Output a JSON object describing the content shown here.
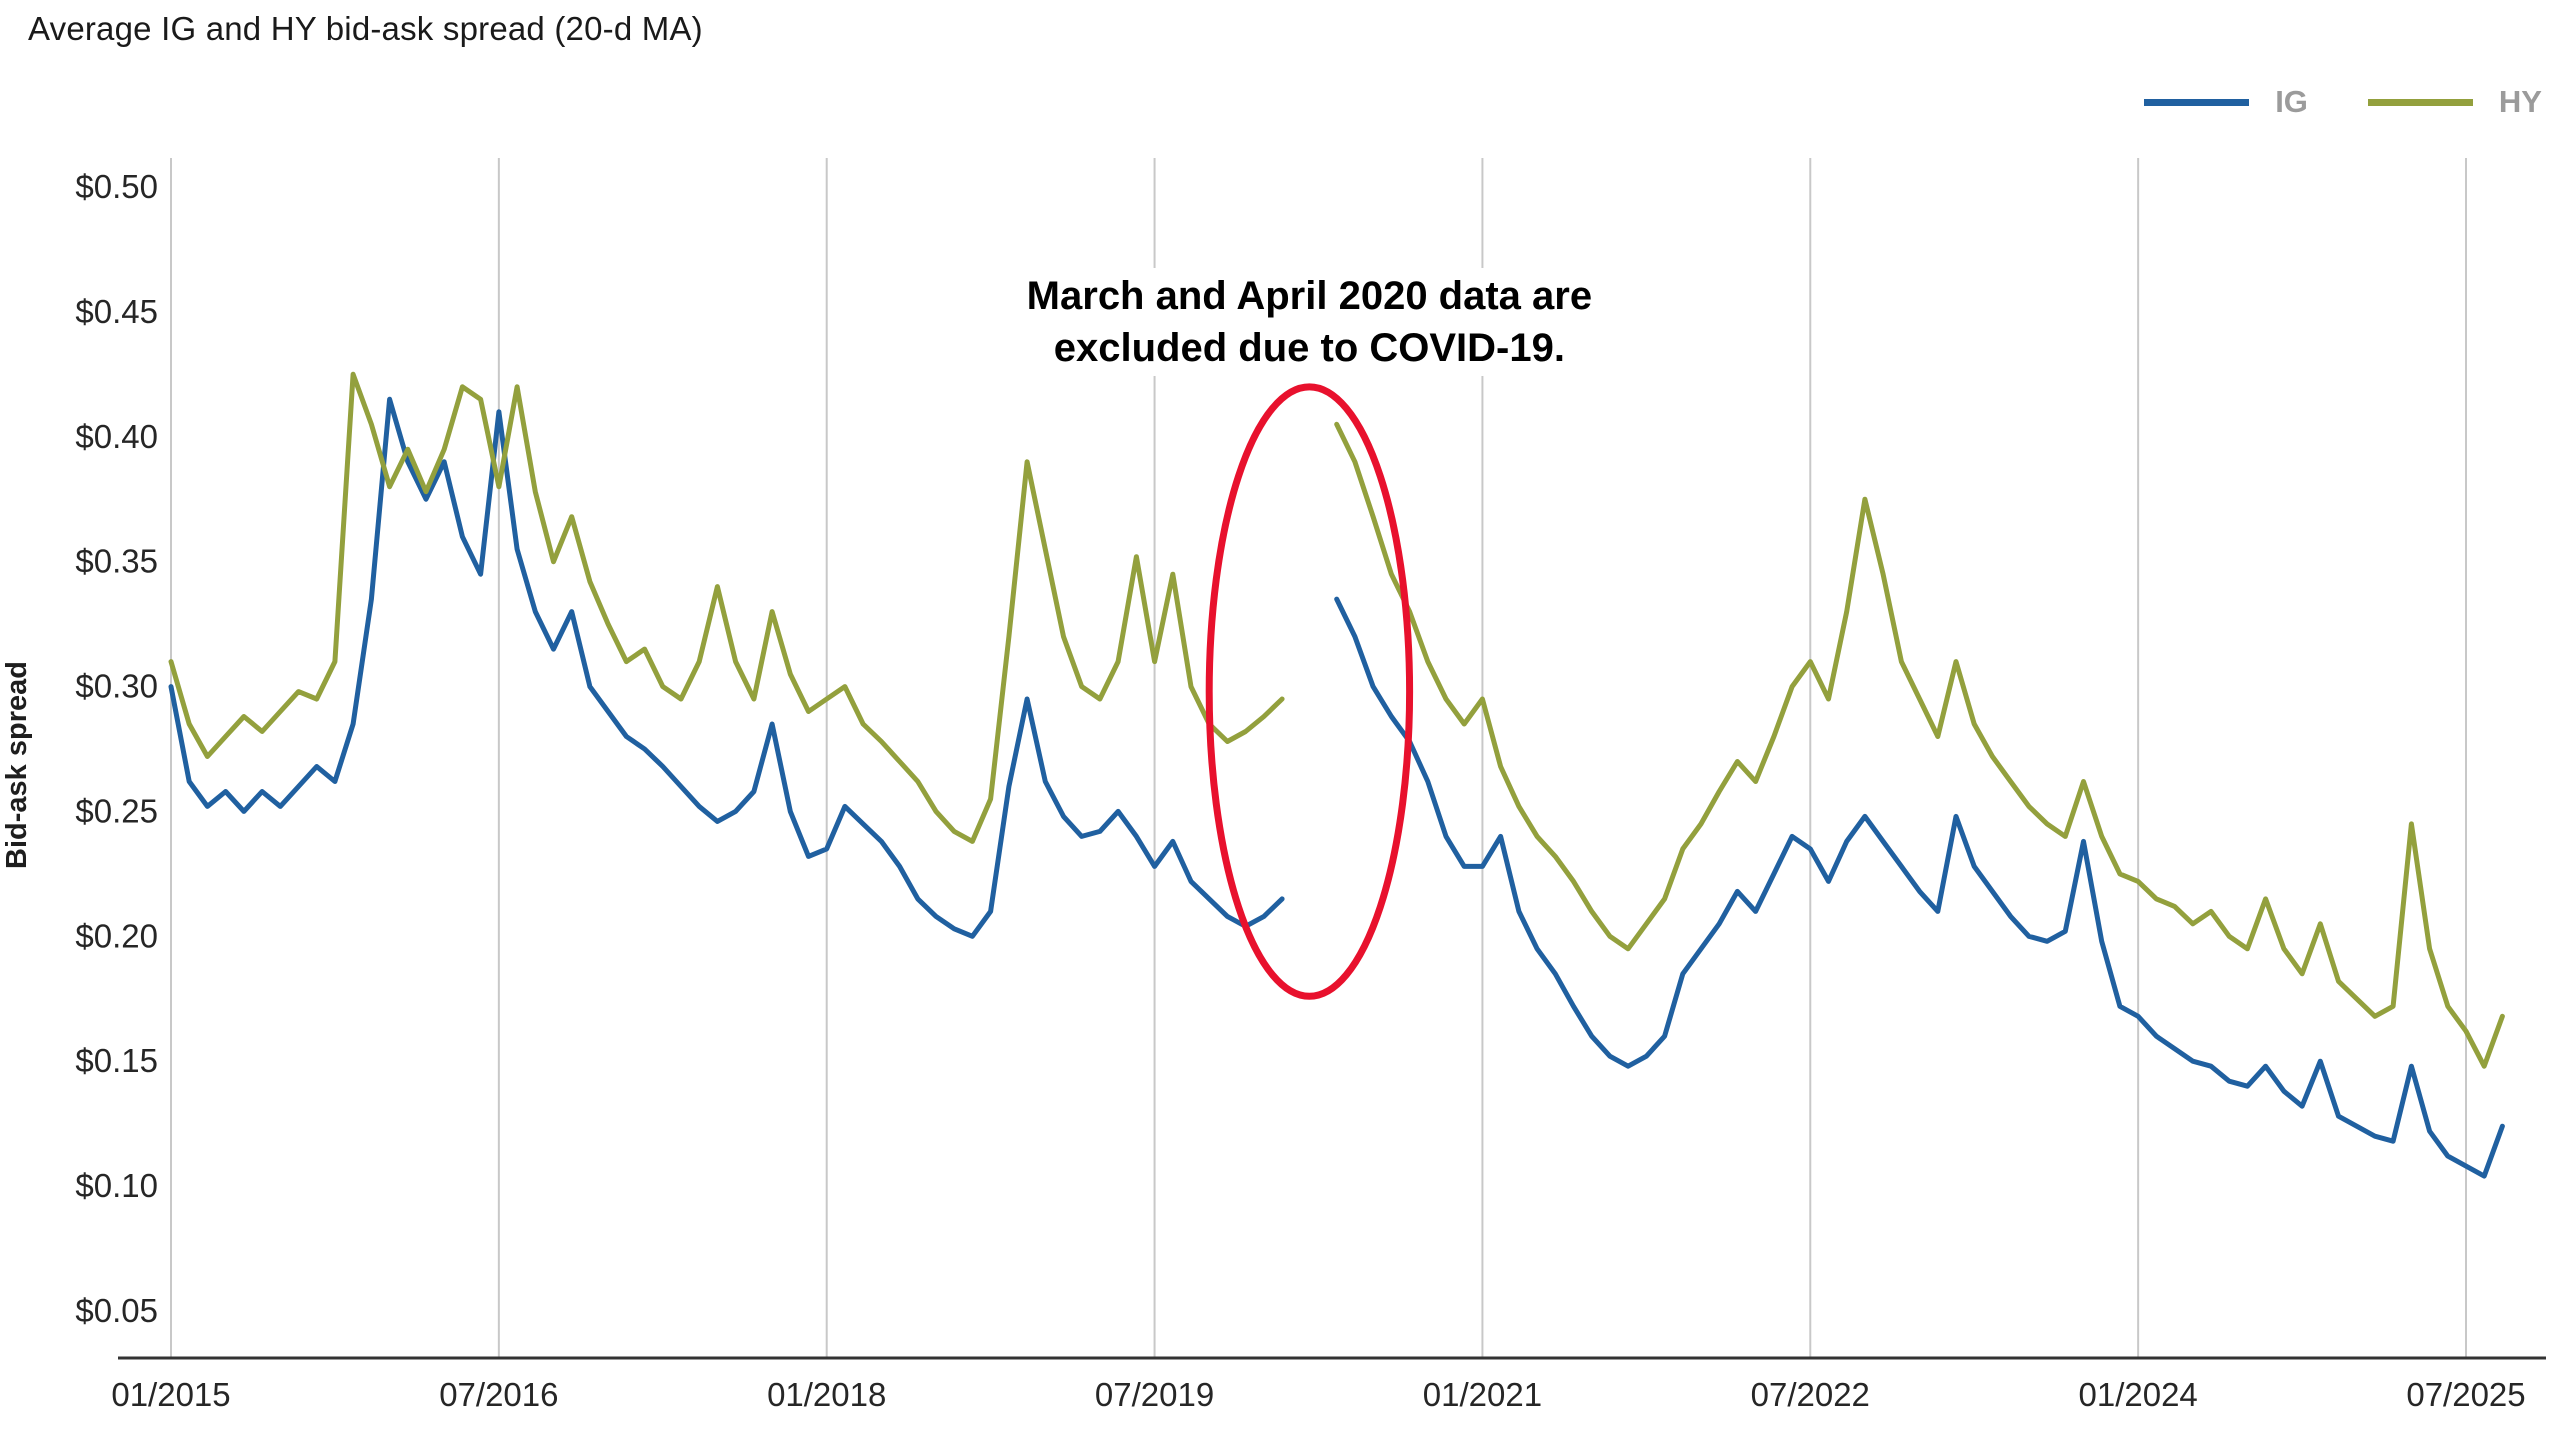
{
  "title": "Average IG and HY bid-ask spread (20-d MA)",
  "legend": [
    {
      "label": "IG",
      "color": "#2060a0"
    },
    {
      "label": "HY",
      "color": "#93a03d"
    }
  ],
  "annotation": {
    "line1": "March and April 2020 data are",
    "line2": "excluded due to COVID-19.",
    "ellipse_center_month_index": 62.5,
    "ellipse_center_value": 0.298,
    "ellipse_rx_months": 5.5,
    "ellipse_ry_value": 0.122
  },
  "colors": {
    "ig": "#2060a0",
    "hy": "#93a03d",
    "ellipse": "#e8112d",
    "grid": "#c8c8c8",
    "axis": "#333333",
    "text": "#262626",
    "legend_text": "#9b9b9b"
  },
  "chart_data": {
    "type": "line",
    "title": "Average IG and HY bid-ask spread (20-d MA)",
    "xlabel": "",
    "ylabel": "Bid-ask spread",
    "frequency": "monthly",
    "x_start": "2015-01",
    "x_end": "2025-09",
    "x_tick_labels": [
      "01/2015",
      "07/2016",
      "01/2018",
      "07/2019",
      "01/2021",
      "07/2022",
      "01/2024",
      "07/2025"
    ],
    "x_tick_month_indices": [
      0,
      18,
      36,
      54,
      72,
      90,
      108,
      126
    ],
    "y_ticks": [
      0.05,
      0.1,
      0.15,
      0.2,
      0.25,
      0.3,
      0.35,
      0.4,
      0.45,
      0.5
    ],
    "y_tick_labels": [
      "$0.05",
      "$0.10",
      "$0.15",
      "$0.20",
      "$0.25",
      "$0.30",
      "$0.35",
      "$0.40",
      "$0.45",
      "$0.50"
    ],
    "ylim": [
      0.03,
      0.51
    ],
    "grid": "vertical-only",
    "legend_position": "top-right",
    "gap": {
      "months": [
        "2020-03",
        "2020-04"
      ],
      "reason": "March and April 2020 data are excluded due to COVID-19."
    },
    "series": [
      {
        "name": "IG",
        "color": "#2060a0",
        "values": [
          0.3,
          0.262,
          0.252,
          0.258,
          0.25,
          0.258,
          0.252,
          0.26,
          0.268,
          0.262,
          0.285,
          0.335,
          0.415,
          0.39,
          0.375,
          0.39,
          0.36,
          0.345,
          0.41,
          0.355,
          0.33,
          0.315,
          0.33,
          0.3,
          0.29,
          0.28,
          0.275,
          0.268,
          0.26,
          0.252,
          0.246,
          0.25,
          0.258,
          0.285,
          0.25,
          0.232,
          0.235,
          0.252,
          0.245,
          0.238,
          0.228,
          0.215,
          0.208,
          0.203,
          0.2,
          0.21,
          0.26,
          0.295,
          0.262,
          0.248,
          0.24,
          0.242,
          0.25,
          0.24,
          0.228,
          0.238,
          0.222,
          0.215,
          0.208,
          0.204,
          0.208,
          0.215,
          null,
          null,
          0.335,
          0.32,
          0.3,
          0.288,
          0.278,
          0.262,
          0.24,
          0.228,
          0.228,
          0.24,
          0.21,
          0.195,
          0.185,
          0.172,
          0.16,
          0.152,
          0.148,
          0.152,
          0.16,
          0.185,
          0.195,
          0.205,
          0.218,
          0.21,
          0.225,
          0.24,
          0.235,
          0.222,
          0.238,
          0.248,
          0.238,
          0.228,
          0.218,
          0.21,
          0.248,
          0.228,
          0.218,
          0.208,
          0.2,
          0.198,
          0.202,
          0.238,
          0.198,
          0.172,
          0.168,
          0.16,
          0.155,
          0.15,
          0.148,
          0.142,
          0.14,
          0.148,
          0.138,
          0.132,
          0.15,
          0.128,
          0.124,
          0.12,
          0.118,
          0.148,
          0.122,
          0.112,
          0.108,
          0.104,
          0.124
        ]
      },
      {
        "name": "HY",
        "color": "#93a03d",
        "values": [
          0.31,
          0.285,
          0.272,
          0.28,
          0.288,
          0.282,
          0.29,
          0.298,
          0.295,
          0.31,
          0.425,
          0.405,
          0.38,
          0.395,
          0.378,
          0.395,
          0.42,
          0.415,
          0.38,
          0.42,
          0.378,
          0.35,
          0.368,
          0.342,
          0.325,
          0.31,
          0.315,
          0.3,
          0.295,
          0.31,
          0.34,
          0.31,
          0.295,
          0.33,
          0.305,
          0.29,
          0.295,
          0.3,
          0.285,
          0.278,
          0.27,
          0.262,
          0.25,
          0.242,
          0.238,
          0.255,
          0.32,
          0.39,
          0.355,
          0.32,
          0.3,
          0.295,
          0.31,
          0.352,
          0.31,
          0.345,
          0.3,
          0.285,
          0.278,
          0.282,
          0.288,
          0.295,
          null,
          null,
          0.405,
          0.39,
          0.368,
          0.345,
          0.33,
          0.31,
          0.295,
          0.285,
          0.295,
          0.268,
          0.252,
          0.24,
          0.232,
          0.222,
          0.21,
          0.2,
          0.195,
          0.205,
          0.215,
          0.235,
          0.245,
          0.258,
          0.27,
          0.262,
          0.28,
          0.3,
          0.31,
          0.295,
          0.33,
          0.375,
          0.345,
          0.31,
          0.295,
          0.28,
          0.31,
          0.285,
          0.272,
          0.262,
          0.252,
          0.245,
          0.24,
          0.262,
          0.24,
          0.225,
          0.222,
          0.215,
          0.212,
          0.205,
          0.21,
          0.2,
          0.195,
          0.215,
          0.195,
          0.185,
          0.205,
          0.182,
          0.175,
          0.168,
          0.172,
          0.245,
          0.195,
          0.172,
          0.162,
          0.148,
          0.168
        ]
      }
    ]
  }
}
